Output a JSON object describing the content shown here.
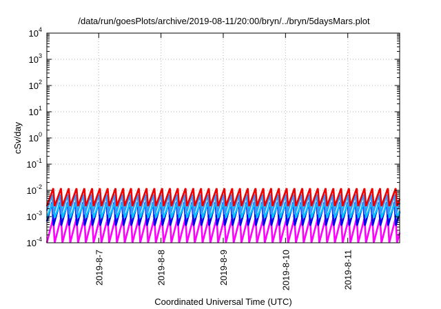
{
  "chart_data": {
    "type": "line",
    "title": "/data/run/goesPlots/archive/2019-08-11/20:00/bryn/../bryn/5daysMars.plot",
    "xlabel": "Coordinated Universal Time (UTC)",
    "ylabel": "cSv/day",
    "yscale": "log",
    "ylim": [
      0.0001,
      10000
    ],
    "y_ticks": [
      {
        "base": "10",
        "exp": "-4"
      },
      {
        "base": "10",
        "exp": "-3"
      },
      {
        "base": "10",
        "exp": "-2"
      },
      {
        "base": "10",
        "exp": "-1"
      },
      {
        "base": "10",
        "exp": "0"
      },
      {
        "base": "10",
        "exp": "1"
      },
      {
        "base": "10",
        "exp": "2"
      },
      {
        "base": "10",
        "exp": "3"
      },
      {
        "base": "10",
        "exp": "4"
      }
    ],
    "xlim": [
      "2019-08-06 04:00",
      "2019-08-11 20:00"
    ],
    "x_ticks": [
      {
        "date": "2019-08-07",
        "label": "2019-8-7"
      },
      {
        "date": "2019-08-08",
        "label": "2019-8-8"
      },
      {
        "date": "2019-08-09",
        "label": "2019-8-9"
      },
      {
        "date": "2019-08-10",
        "label": "2019-8-10"
      },
      {
        "date": "2019-08-11",
        "label": "2019-8-11"
      }
    ],
    "grid": true,
    "sawtooth_period_hours": 3,
    "series": [
      {
        "color": "#ff00ff",
        "peak": 0.0009,
        "trough": 0.0001
      },
      {
        "color": "#0000ee",
        "peak": 0.0035,
        "trough": 0.00045
      },
      {
        "color": "#00c8ff",
        "peak": 0.004,
        "trough": 0.0009
      },
      {
        "color": "#3399ff",
        "peak": 0.007,
        "trough": 0.0012
      },
      {
        "color": "#ee0000",
        "peak": 0.012,
        "trough": 0.0025
      }
    ]
  }
}
